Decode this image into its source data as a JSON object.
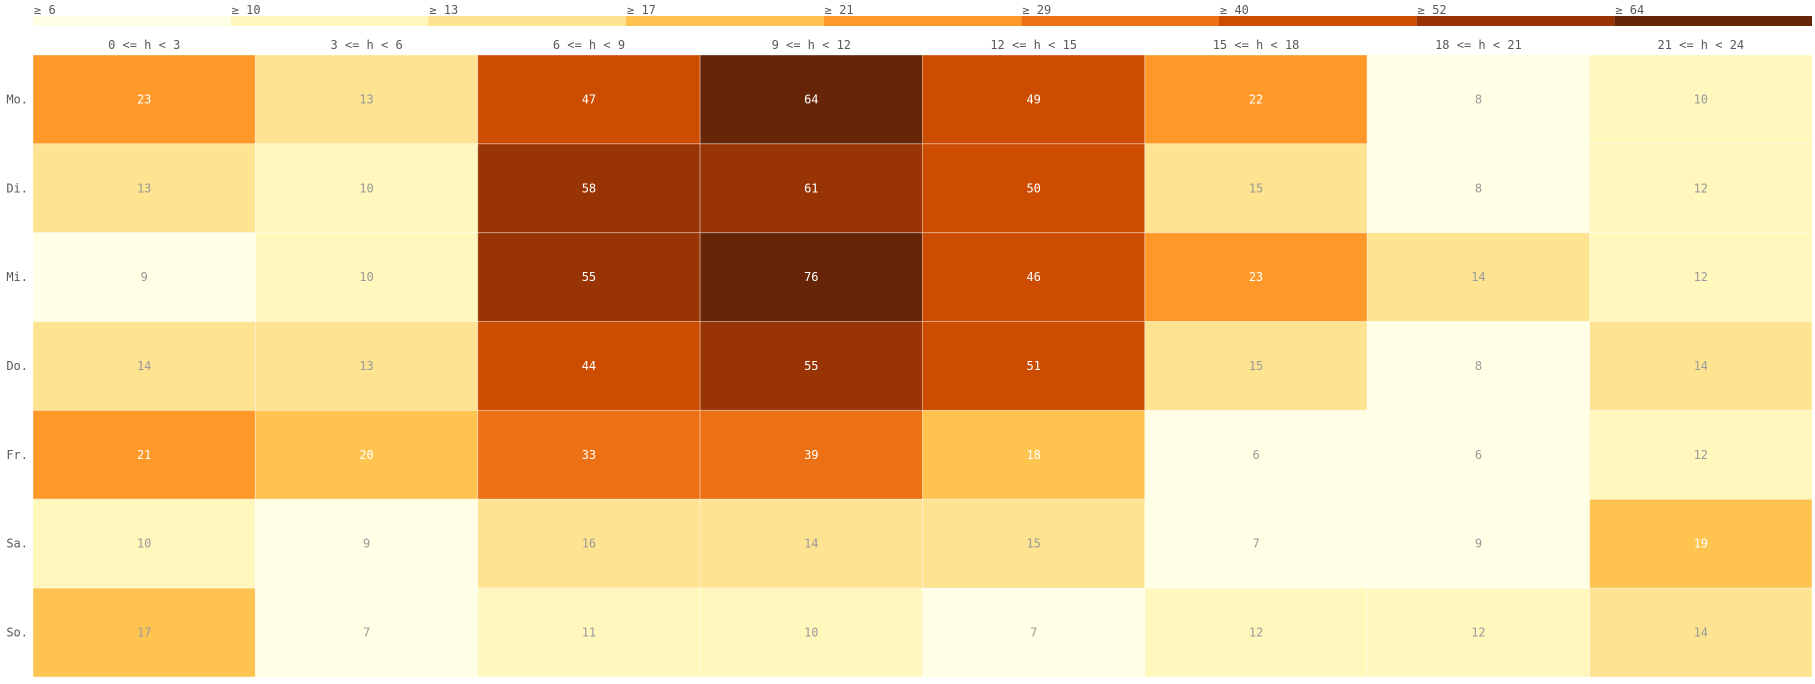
{
  "chart_data": {
    "type": "heatmap",
    "title": "",
    "legend": {
      "placement": "top",
      "labels": [
        "≥ 6",
        "≥ 10",
        "≥ 13",
        "≥ 17",
        "≥ 21",
        "≥ 29",
        "≥ 40",
        "≥ 52",
        "≥ 64"
      ],
      "thresholds": [
        6,
        10,
        13,
        17,
        21,
        29,
        40,
        52,
        64
      ],
      "colors": [
        "#FFFFE5",
        "#FFF7BC",
        "#FEE391",
        "#FEC44F",
        "#FE9929",
        "#EC7014",
        "#CC4C02",
        "#993404",
        "#662506"
      ]
    },
    "columns": [
      "0 <= h < 3",
      "3 <= h < 6",
      "6 <= h < 9",
      "9 <= h < 12",
      "12 <= h < 15",
      "15 <= h < 18",
      "18 <= h < 21",
      "21 <= h < 24"
    ],
    "rows": [
      "Mo.",
      "Di.",
      "Mi.",
      "Do.",
      "Fr.",
      "Sa.",
      "So."
    ],
    "values": [
      [
        23,
        13,
        47,
        64,
        49,
        22,
        8,
        10
      ],
      [
        13,
        10,
        58,
        61,
        50,
        15,
        8,
        12
      ],
      [
        9,
        10,
        55,
        76,
        46,
        23,
        14,
        12
      ],
      [
        14,
        13,
        44,
        55,
        51,
        15,
        8,
        14
      ],
      [
        21,
        20,
        33,
        39,
        18,
        6,
        6,
        12
      ],
      [
        10,
        9,
        16,
        14,
        15,
        7,
        9,
        19
      ],
      [
        17,
        7,
        11,
        10,
        7,
        12,
        12,
        14
      ]
    ],
    "text_colors": {
      "light": "#ffffff",
      "dark": "#9a9a9a",
      "axis": "#595959"
    }
  }
}
